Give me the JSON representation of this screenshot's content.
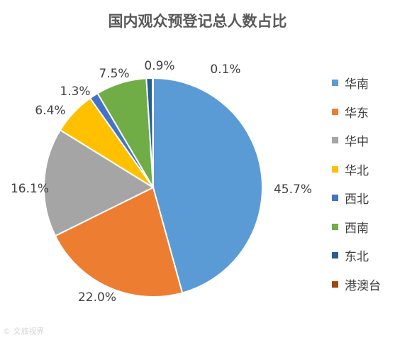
{
  "chart_data": {
    "type": "pie",
    "title": "国内观众预登记总人数占比",
    "categories": [
      "华南",
      "华东",
      "华中",
      "华北",
      "西北",
      "西南",
      "东北",
      "港澳台"
    ],
    "values": [
      45.7,
      22.0,
      16.1,
      6.4,
      1.3,
      7.5,
      0.9,
      0.1
    ],
    "labels": [
      "45.7%",
      "22.0%",
      "16.1%",
      "6.4%",
      "1.3%",
      "7.5%",
      "0.9%",
      "0.1%"
    ],
    "colors": [
      "#5b9bd5",
      "#ed7d31",
      "#a5a5a5",
      "#ffc000",
      "#4472c4",
      "#70ad47",
      "#255e91",
      "#9e480e"
    ],
    "legend": "right",
    "start_angle": "12 o'clock",
    "direction": "clockwise"
  },
  "watermark": "© 文旅视界"
}
